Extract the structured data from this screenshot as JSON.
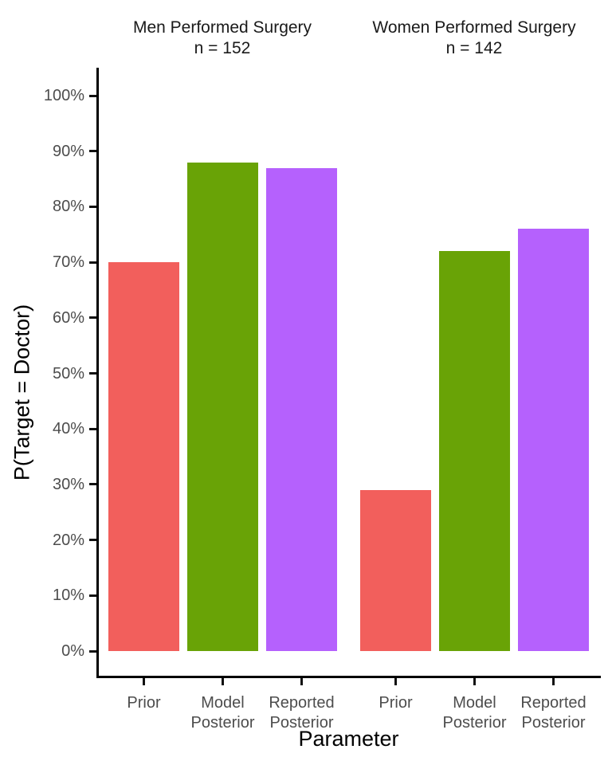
{
  "chart_data": {
    "type": "bar",
    "xlabel": "Parameter",
    "ylabel": "P(Target = Doctor)",
    "y_ticks": [
      "0%",
      "10%",
      "20%",
      "30%",
      "40%",
      "50%",
      "60%",
      "70%",
      "80%",
      "90%",
      "100%"
    ],
    "ylim": [
      0,
      105
    ],
    "y_unit": "percent",
    "grid": false,
    "legend": "none",
    "categories": [
      "Prior",
      "Model Posterior",
      "Reported Posterior"
    ],
    "category_label_lines": [
      [
        "Prior"
      ],
      [
        "Model",
        "Posterior"
      ],
      [
        "Reported",
        "Posterior"
      ]
    ],
    "bar_colors": [
      "#F25F5C",
      "#69A306",
      "#B561FD"
    ],
    "facets": [
      {
        "title": "Men Performed Surgery",
        "subtitle": "n = 152",
        "values": [
          70,
          88,
          87
        ]
      },
      {
        "title": "Women Performed Surgery",
        "subtitle": "n = 142",
        "values": [
          29,
          72,
          76
        ]
      }
    ]
  },
  "colors": {
    "axis_line": "#000000",
    "tick_label": "#4d4d4d",
    "strip_text": "#1a1a1a",
    "background": "#ffffff"
  }
}
